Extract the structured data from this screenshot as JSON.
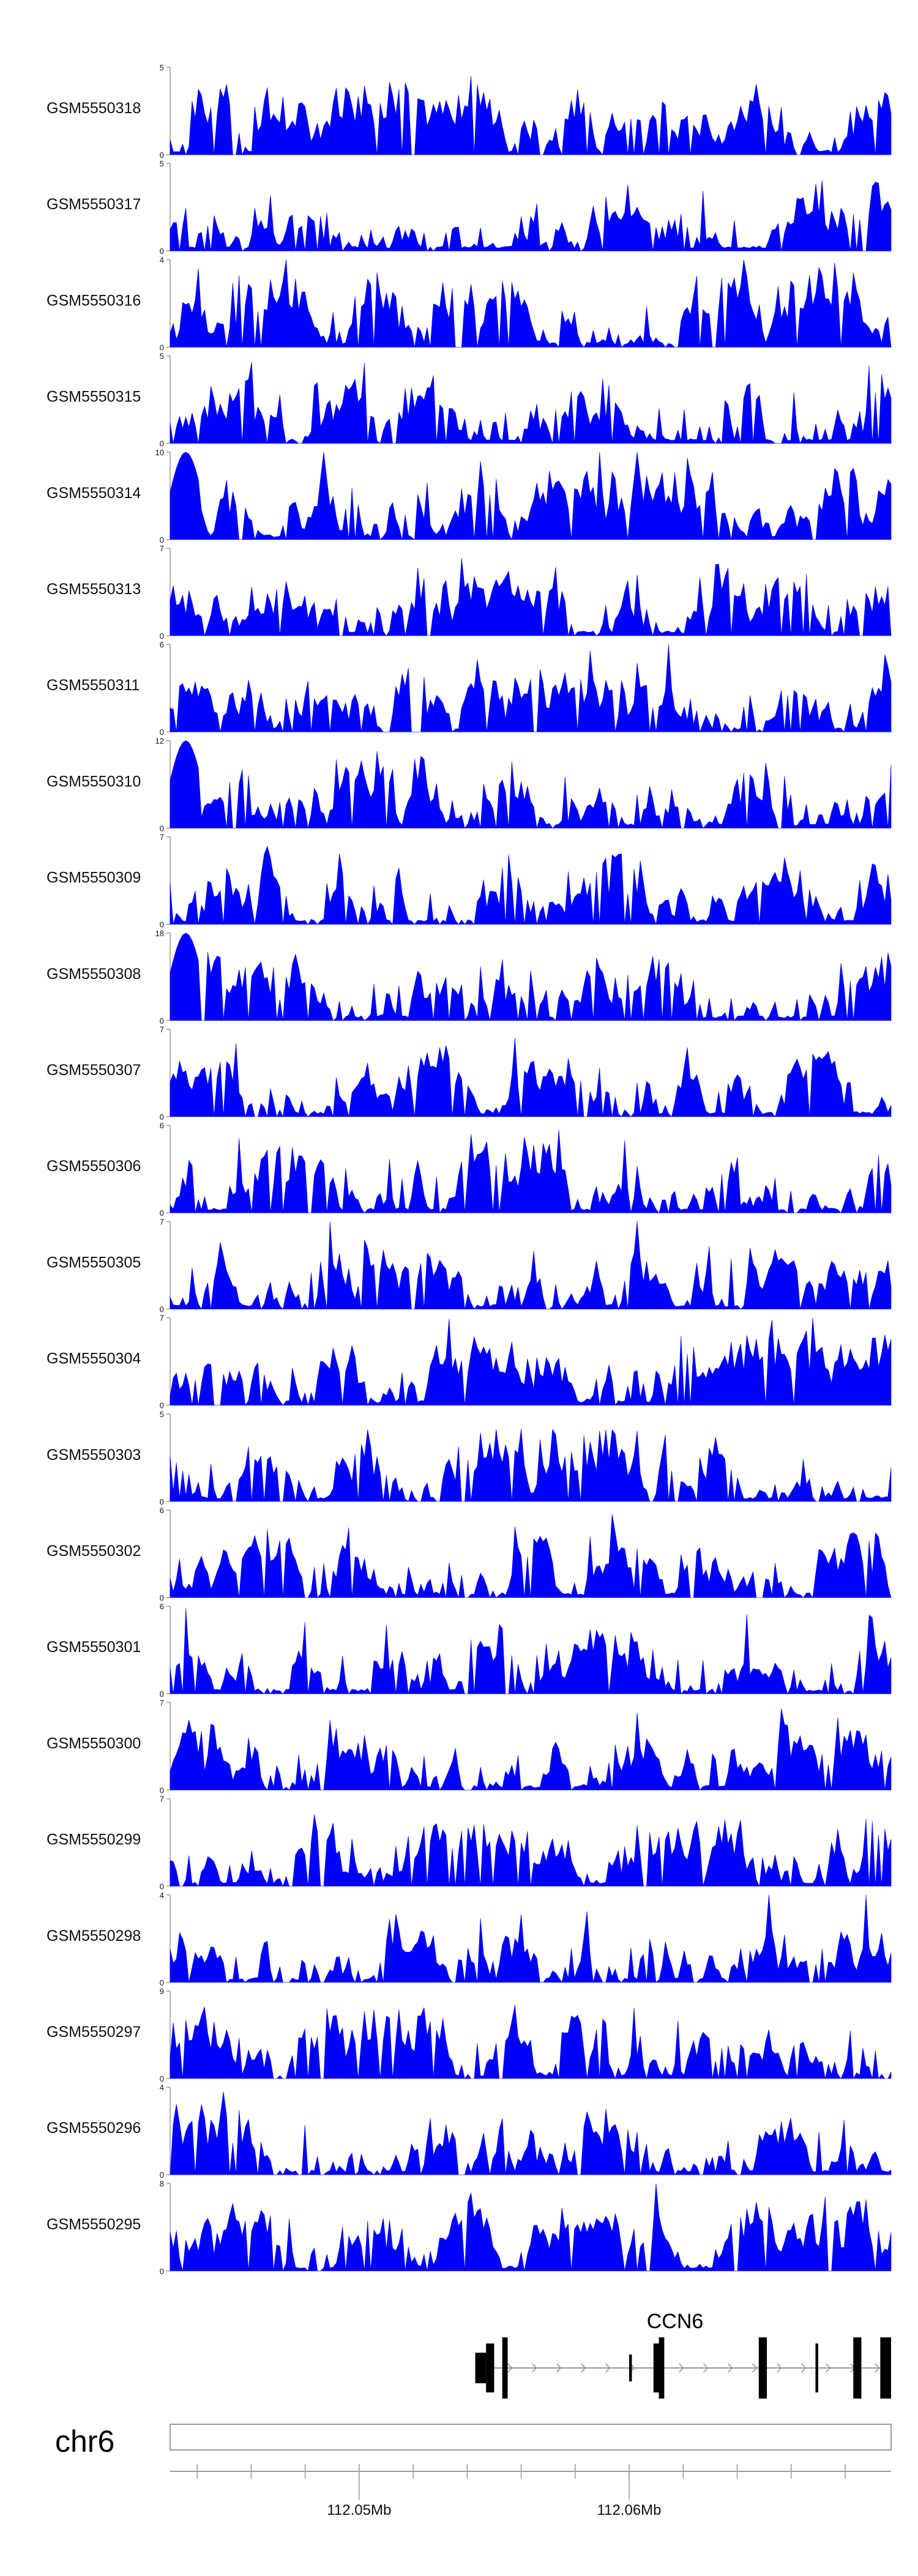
{
  "chart_data": {
    "type": "area",
    "color": "#0000ff",
    "tracks": [
      {
        "label": "GSM5550318",
        "ymax": 5
      },
      {
        "label": "GSM5550317",
        "ymax": 5
      },
      {
        "label": "GSM5550316",
        "ymax": 4
      },
      {
        "label": "GSM5550315",
        "ymax": 5
      },
      {
        "label": "GSM5550314",
        "ymax": 10
      },
      {
        "label": "GSM5550313",
        "ymax": 7
      },
      {
        "label": "GSM5550311",
        "ymax": 6
      },
      {
        "label": "GSM5550310",
        "ymax": 12
      },
      {
        "label": "GSM5550309",
        "ymax": 7
      },
      {
        "label": "GSM5550308",
        "ymax": 18
      },
      {
        "label": "GSM5550307",
        "ymax": 7
      },
      {
        "label": "GSM5550306",
        "ymax": 6
      },
      {
        "label": "GSM5550305",
        "ymax": 7
      },
      {
        "label": "GSM5550304",
        "ymax": 7
      },
      {
        "label": "GSM5550303",
        "ymax": 5
      },
      {
        "label": "GSM5550302",
        "ymax": 6
      },
      {
        "label": "GSM5550301",
        "ymax": 6
      },
      {
        "label": "GSM5550300",
        "ymax": 7
      },
      {
        "label": "GSM5550299",
        "ymax": 7
      },
      {
        "label": "GSM5550298",
        "ymax": 4
      },
      {
        "label": "GSM5550297",
        "ymax": 9
      },
      {
        "label": "GSM5550296",
        "ymax": 4
      },
      {
        "label": "GSM5550295",
        "ymax": 8
      }
    ],
    "genome_axis": {
      "chromosome": "chr6",
      "unit": "Mb",
      "labels": [
        "112.05Mb",
        "112.06Mb"
      ],
      "label_positions": [
        112.05,
        112.06
      ],
      "range": [
        112.043,
        112.0697
      ]
    },
    "gene": {
      "name": "CCN6",
      "strand": "+",
      "start": 112.0543,
      "end": 112.0697
    }
  }
}
